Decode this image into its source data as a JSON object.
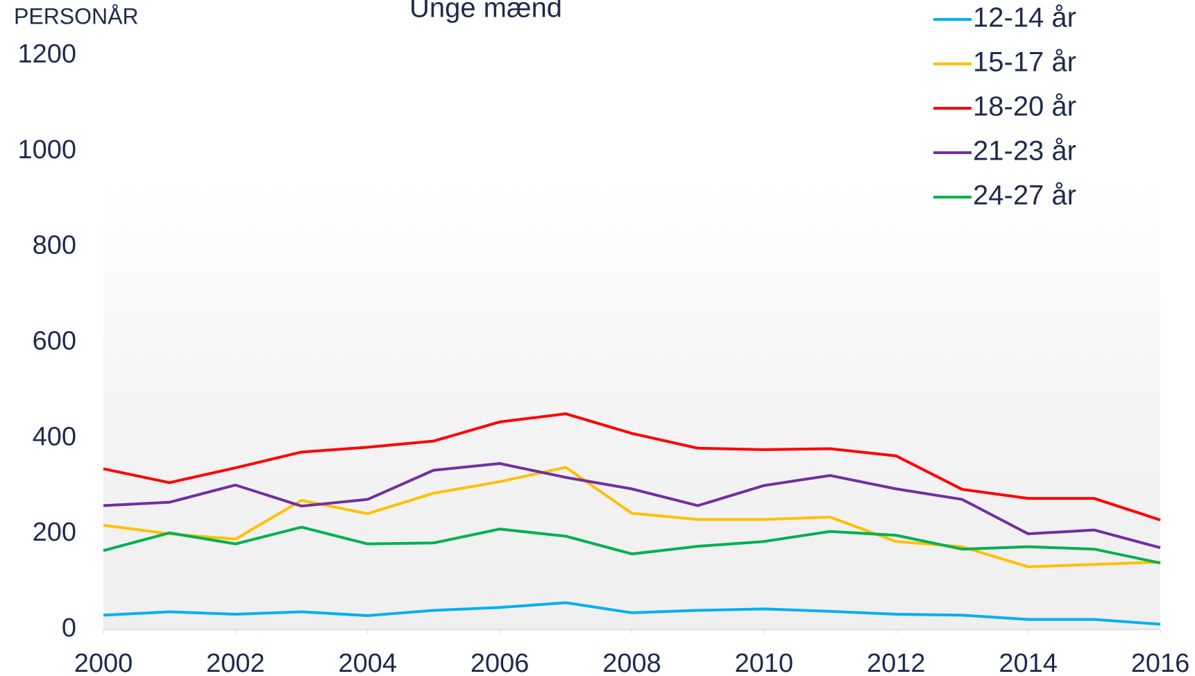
{
  "chart_data": {
    "type": "line",
    "title": "Unge mænd",
    "y_label": "PERSONÅR",
    "x": [
      2000,
      2001,
      2002,
      2003,
      2004,
      2005,
      2006,
      2007,
      2008,
      2009,
      2010,
      2011,
      2012,
      2013,
      2014,
      2015,
      2016
    ],
    "xlim": [
      2000,
      2016
    ],
    "xticks": [
      2000,
      2002,
      2004,
      2006,
      2008,
      2010,
      2012,
      2014,
      2016
    ],
    "ylim": [
      0,
      1200
    ],
    "yticks": [
      0,
      200,
      400,
      600,
      800,
      1000,
      1200
    ],
    "legend": "top-right",
    "series": [
      {
        "name": "12-14 år",
        "color": "#00b0f0",
        "values": [
          30,
          37,
          32,
          37,
          29,
          40,
          46,
          56,
          35,
          40,
          43,
          38,
          32,
          30,
          21,
          21,
          11
        ]
      },
      {
        "name": "15-17 år",
        "color": "#ffc000",
        "values": [
          218,
          200,
          189,
          270,
          242,
          285,
          309,
          339,
          243,
          230,
          230,
          235,
          184,
          173,
          131,
          136,
          141
        ]
      },
      {
        "name": "18-20 år",
        "color": "#ff0000",
        "values": [
          336,
          307,
          338,
          371,
          381,
          394,
          434,
          451,
          410,
          379,
          376,
          378,
          363,
          293,
          274,
          274,
          229
        ]
      },
      {
        "name": "21-23 år",
        "color": "#7030a0",
        "values": [
          259,
          266,
          302,
          258,
          272,
          333,
          347,
          318,
          294,
          259,
          301,
          322,
          294,
          272,
          200,
          208,
          171
        ]
      },
      {
        "name": "24-27 år",
        "color": "#00b050",
        "values": [
          165,
          202,
          179,
          214,
          179,
          181,
          210,
          195,
          158,
          174,
          184,
          205,
          197,
          168,
          173,
          168,
          139
        ]
      }
    ]
  }
}
